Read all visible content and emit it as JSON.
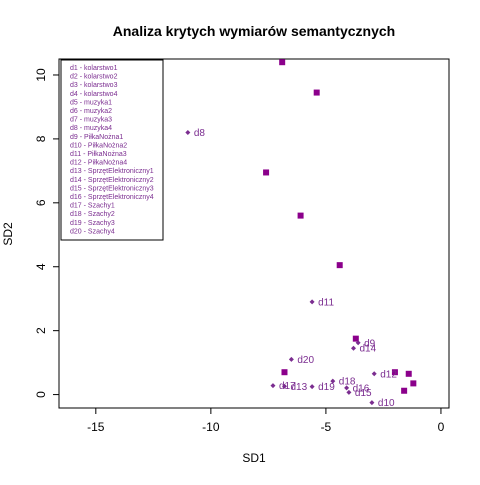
{
  "chart_data": {
    "type": "scatter",
    "title": "Analiza krytych wymiarów semantycznych",
    "xlabel": "SD1",
    "ylabel": "SD2",
    "xlim": [
      -16.6,
      0.35
    ],
    "ylim": [
      -0.42,
      10.5
    ],
    "x_ticks": [
      -15,
      -10,
      -5,
      0
    ],
    "y_ticks": [
      0,
      2,
      4,
      6,
      8,
      10
    ],
    "grid": false,
    "legend_position": "top-left",
    "colors": {
      "term": "#7B2D90",
      "document": "#8B008B",
      "text": "#7B2D90"
    },
    "legend_items": [
      "d1 - kolarstwo1",
      "d2 - kolarstwo2",
      "d3 - kolarstwo3",
      "d4 - kolarstwo4",
      "d5 - muzyka1",
      "d6 - muzyka2",
      "d7 - muzyka3",
      "d8 - muzyka4",
      "d9 - PiłkaNożna1",
      "d10 - PiłkaNożna2",
      "d11 - PiłkaNożna3",
      "d12 - PiłkaNożna4",
      "d13 - SprzętElektroniczny1",
      "d14 - SprzętElektroniczny2",
      "d15 - SprzętElektroniczny3",
      "d16 - SprzętElektroniczny4",
      "d17 - Szachy1",
      "d18 - Szachy2",
      "d19 - Szachy3",
      "d20 - Szachy4"
    ],
    "documents": [
      {
        "label": "d8",
        "x": -11.0,
        "y": 8.2
      },
      {
        "label": "d11",
        "x": -5.6,
        "y": 2.9
      },
      {
        "label": "d20",
        "x": -6.5,
        "y": 1.1
      },
      {
        "label": "d9",
        "x": -3.6,
        "y": 1.62
      },
      {
        "label": "d14",
        "x": -3.8,
        "y": 1.45
      },
      {
        "label": "d12",
        "x": -2.9,
        "y": 0.65
      },
      {
        "label": "d18",
        "x": -4.7,
        "y": 0.42
      },
      {
        "label": "d17",
        "x": -7.3,
        "y": 0.28
      },
      {
        "label": "d13",
        "x": -6.8,
        "y": 0.26
      },
      {
        "label": "d19",
        "x": -5.6,
        "y": 0.25
      },
      {
        "label": "d16",
        "x": -4.1,
        "y": 0.21
      },
      {
        "label": "d15",
        "x": -4.0,
        "y": 0.07
      },
      {
        "label": "d10",
        "x": -3.0,
        "y": -0.25
      }
    ],
    "terms": [
      {
        "x": -6.9,
        "y": 10.4
      },
      {
        "x": -5.4,
        "y": 9.45
      },
      {
        "x": -7.6,
        "y": 6.95
      },
      {
        "x": -6.1,
        "y": 5.6
      },
      {
        "x": -4.4,
        "y": 4.05
      },
      {
        "x": -3.7,
        "y": 1.75
      },
      {
        "x": -6.8,
        "y": 0.7
      },
      {
        "x": -2.0,
        "y": 0.7
      },
      {
        "x": -1.4,
        "y": 0.65
      },
      {
        "x": -1.2,
        "y": 0.35
      },
      {
        "x": -1.6,
        "y": 0.12
      }
    ]
  }
}
